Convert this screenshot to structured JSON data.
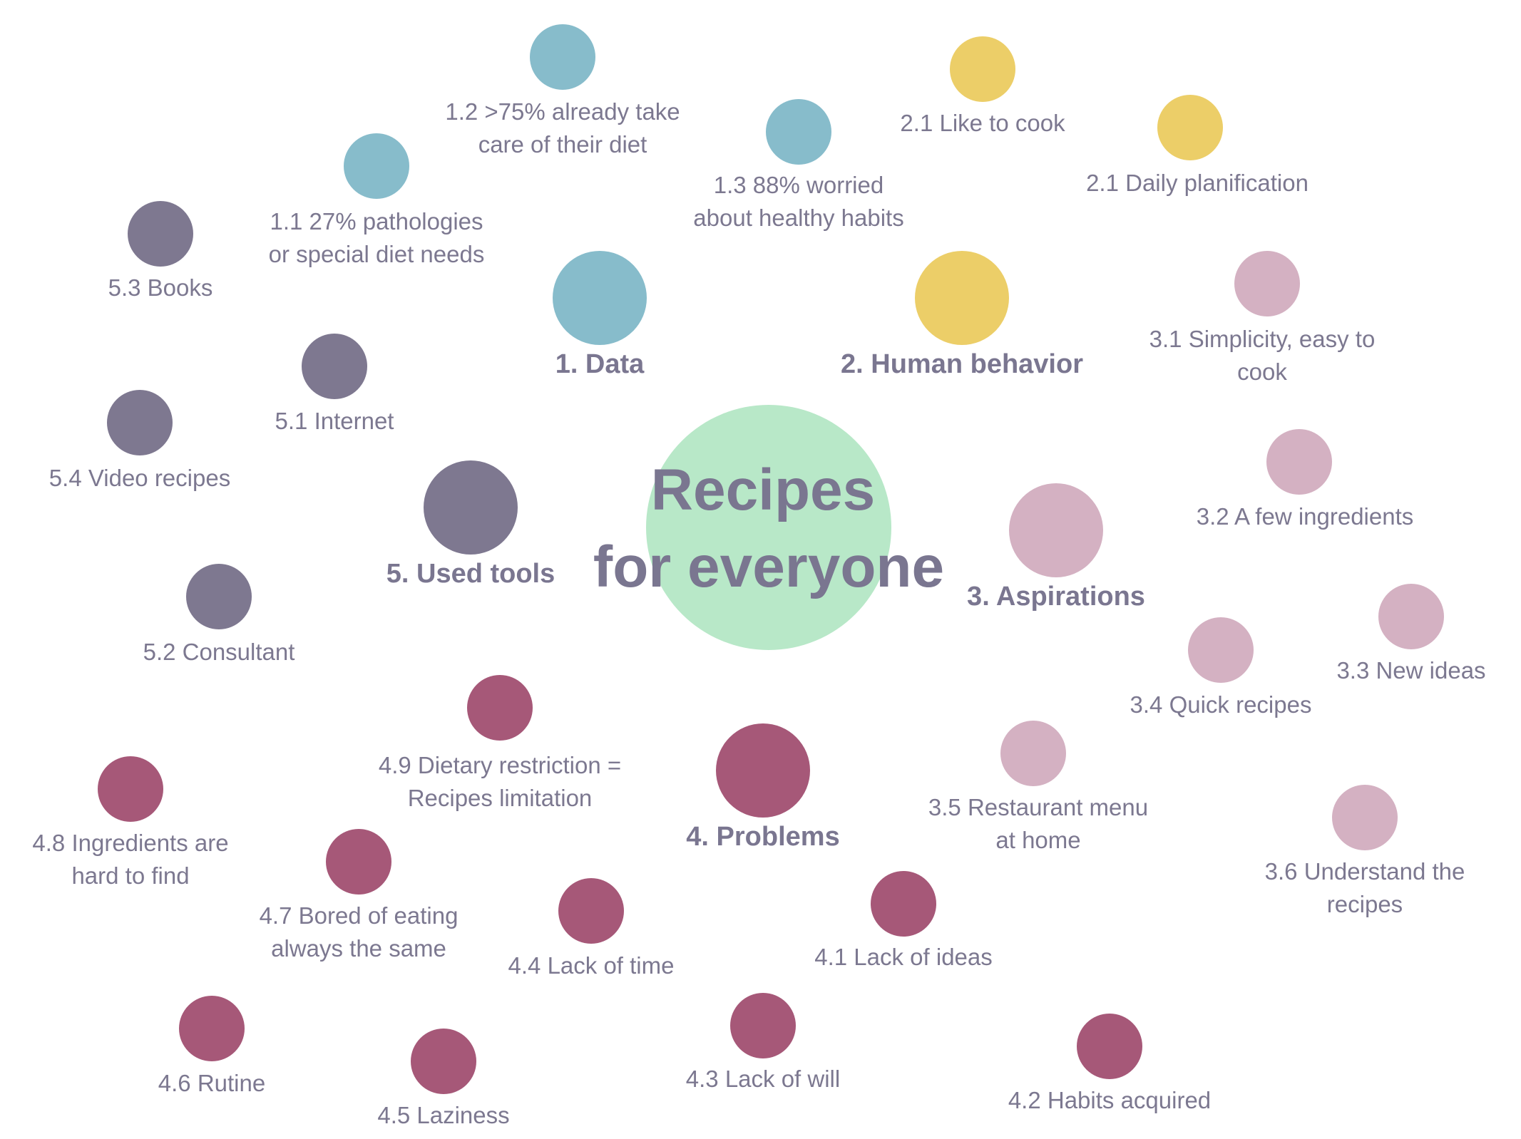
{
  "colors": {
    "data": "#87bccb",
    "human": "#ecce68",
    "aspirations": "#d4b1c2",
    "problems": "#a65878",
    "tools": "#7e7890",
    "center": "#b8e8c8",
    "text": "#7c7890"
  },
  "title": [
    "Recipes",
    "for everyone"
  ],
  "categories": [
    {
      "id": "data",
      "label": "1. Data"
    },
    {
      "id": "human",
      "label": "2. Human behavior"
    },
    {
      "id": "aspirations",
      "label": "3. Aspirations"
    },
    {
      "id": "problems",
      "label": "4. Problems"
    },
    {
      "id": "tools",
      "label": "5. Used tools"
    }
  ],
  "items": [
    {
      "id": "1-1",
      "group": "data",
      "lines": [
        "1.1 27% pathologies",
        "or special diet needs"
      ]
    },
    {
      "id": "1-2",
      "group": "data",
      "lines": [
        "1.2 >75% already take",
        "care of their diet"
      ]
    },
    {
      "id": "1-3",
      "group": "data",
      "lines": [
        "1.3 88% worried",
        "about healthy habits"
      ]
    },
    {
      "id": "2-1a",
      "group": "human",
      "lines": [
        "2.1 Like to cook"
      ]
    },
    {
      "id": "2-1b",
      "group": "human",
      "lines": [
        "2.1 Daily planification"
      ]
    },
    {
      "id": "3-1",
      "group": "aspirations",
      "lines": [
        "3.1 Simplicity, easy to",
        "cook"
      ]
    },
    {
      "id": "3-2",
      "group": "aspirations",
      "lines": [
        "3.2 A few ingredients"
      ]
    },
    {
      "id": "3-3",
      "group": "aspirations",
      "lines": [
        "3.3 New ideas"
      ]
    },
    {
      "id": "3-4",
      "group": "aspirations",
      "lines": [
        "3.4 Quick recipes"
      ]
    },
    {
      "id": "3-5",
      "group": "aspirations",
      "lines": [
        "3.5 Restaurant menu",
        "at home"
      ]
    },
    {
      "id": "3-6",
      "group": "aspirations",
      "lines": [
        "3.6 Understand the",
        "recipes"
      ]
    },
    {
      "id": "4-1",
      "group": "problems",
      "lines": [
        "4.1 Lack of ideas"
      ]
    },
    {
      "id": "4-2",
      "group": "problems",
      "lines": [
        "4.2 Habits acquired"
      ]
    },
    {
      "id": "4-3",
      "group": "problems",
      "lines": [
        "4.3 Lack of will"
      ]
    },
    {
      "id": "4-4",
      "group": "problems",
      "lines": [
        "4.4 Lack of time"
      ]
    },
    {
      "id": "4-5",
      "group": "problems",
      "lines": [
        "4.5 Laziness"
      ]
    },
    {
      "id": "4-6",
      "group": "problems",
      "lines": [
        "4.6 Rutine"
      ]
    },
    {
      "id": "4-7",
      "group": "problems",
      "lines": [
        "4.7 Bored of eating",
        "always the same"
      ]
    },
    {
      "id": "4-8",
      "group": "problems",
      "lines": [
        "4.8 Ingredients are",
        "hard to find"
      ]
    },
    {
      "id": "4-9",
      "group": "problems",
      "lines": [
        "4.9 Dietary restriction =",
        "Recipes limitation"
      ]
    },
    {
      "id": "5-1",
      "group": "tools",
      "lines": [
        "5.1 Internet"
      ]
    },
    {
      "id": "5-2",
      "group": "tools",
      "lines": [
        "5.2 Consultant"
      ]
    },
    {
      "id": "5-3",
      "group": "tools",
      "lines": [
        "5.3 Books"
      ]
    },
    {
      "id": "5-4",
      "group": "tools",
      "lines": [
        "5.4 Video recipes"
      ]
    }
  ]
}
